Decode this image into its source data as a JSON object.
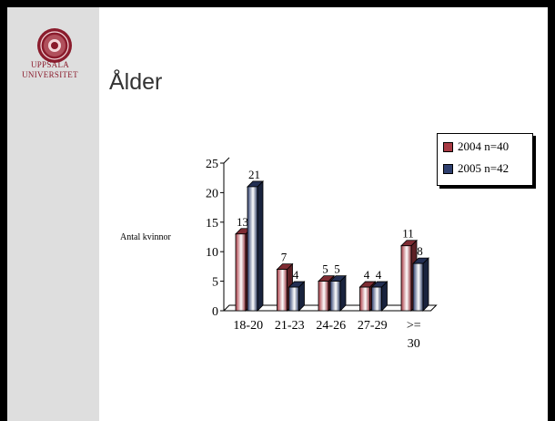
{
  "slide": {
    "title": "Ålder",
    "logo": {
      "line1": "UPPSALA",
      "line2": "UNIVERSITET"
    }
  },
  "colors": {
    "series1": "#a83a44",
    "series2": "#2e3f6e",
    "logo_red": "#8a1b2c"
  },
  "chart_data": {
    "type": "bar",
    "categories": [
      "18-20",
      "21-23",
      "24-26",
      "27-29",
      ">= 30"
    ],
    "category_lines": [
      [
        "18-20"
      ],
      [
        "21-23"
      ],
      [
        "24-26"
      ],
      [
        "27-29"
      ],
      [
        ">=",
        "30"
      ]
    ],
    "series": [
      {
        "name": "2004 n=40",
        "values": [
          13,
          7,
          5,
          4,
          11
        ]
      },
      {
        "name": "2005 n=42",
        "values": [
          21,
          4,
          5,
          4,
          8
        ]
      }
    ],
    "title": "",
    "xlabel": "",
    "ylabel": "Antal kvinnor",
    "ylim": [
      0,
      25
    ],
    "yticks": [
      0,
      5,
      10,
      15,
      20,
      25
    ],
    "legend": "top-right",
    "grid": false
  }
}
